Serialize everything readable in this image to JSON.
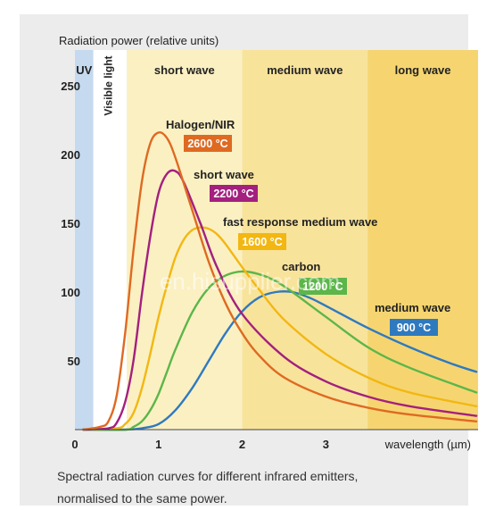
{
  "chart_data": {
    "type": "line",
    "y_title": "Radiation power (relative units)",
    "x_title": "wavelength (µm)",
    "xlim": [
      0,
      4.82
    ],
    "ylim": [
      0,
      276
    ],
    "x_ticks": [
      0,
      1,
      2,
      3
    ],
    "y_ticks": [
      50,
      100,
      150,
      200,
      250
    ],
    "bands": [
      {
        "label": "UV",
        "from": 0,
        "to": 0.22,
        "color": "#c5d9ef"
      },
      {
        "label": "Visible light",
        "from": 0.22,
        "to": 0.62,
        "color": "#ffffff"
      },
      {
        "label": "short wave",
        "from": 0.62,
        "to": 2.0,
        "color": "#fbf0c2"
      },
      {
        "label": "medium wave",
        "from": 2.0,
        "to": 3.5,
        "color": "#f8e39b"
      },
      {
        "label": "long wave",
        "from": 3.5,
        "to": 4.82,
        "color": "#f6d570"
      }
    ],
    "series": [
      {
        "name": "Halogen/NIR",
        "temp": "2600 °C",
        "color": "#de6a22",
        "x": [
          0.1,
          0.3,
          0.4,
          0.5,
          0.6,
          0.7,
          0.8,
          0.9,
          1.0,
          1.1,
          1.2,
          1.4,
          1.6,
          1.8,
          2.0,
          2.2,
          2.5,
          3.0,
          3.5,
          4.0,
          4.8
        ],
        "y": [
          0,
          2,
          6,
          25,
          70,
          130,
          180,
          208,
          216,
          212,
          198,
          160,
          122,
          92,
          70,
          54,
          38,
          24,
          16,
          11,
          6
        ]
      },
      {
        "name": "short wave",
        "temp": "2200 °C",
        "color": "#a3207e",
        "x": [
          0.1,
          0.4,
          0.5,
          0.6,
          0.7,
          0.8,
          0.9,
          1.0,
          1.1,
          1.2,
          1.3,
          1.5,
          1.7,
          2.0,
          2.5,
          3.0,
          3.5,
          4.0,
          4.8
        ],
        "y": [
          0,
          1,
          5,
          20,
          50,
          98,
          140,
          172,
          186,
          188,
          180,
          150,
          118,
          84,
          53,
          35,
          24,
          17,
          10
        ]
      },
      {
        "name": "fast response medium wave",
        "temp": "1600 °C",
        "color": "#f2b712",
        "x": [
          0.1,
          0.5,
          0.6,
          0.7,
          0.8,
          0.9,
          1.0,
          1.1,
          1.2,
          1.3,
          1.4,
          1.5,
          1.6,
          1.7,
          1.8,
          2.0,
          2.2,
          2.5,
          3.0,
          3.5,
          4.0,
          4.8
        ],
        "y": [
          0,
          1,
          4,
          12,
          30,
          55,
          82,
          105,
          125,
          138,
          145,
          147,
          146,
          142,
          135,
          118,
          102,
          80,
          55,
          38,
          27,
          17
        ]
      },
      {
        "name": "carbon",
        "temp": "1200 °C",
        "color": "#5cb64a",
        "x": [
          0.1,
          0.6,
          0.7,
          0.8,
          0.9,
          1.0,
          1.1,
          1.2,
          1.4,
          1.6,
          1.8,
          2.0,
          2.2,
          2.4,
          2.6,
          3.0,
          3.5,
          4.0,
          4.8
        ],
        "y": [
          0,
          0,
          2,
          6,
          14,
          26,
          42,
          58,
          85,
          103,
          112,
          115,
          113,
          108,
          100,
          82,
          60,
          45,
          27
        ]
      },
      {
        "name": "medium wave",
        "temp": "900 °C",
        "color": "#2f7abf",
        "x": [
          0.1,
          0.6,
          0.8,
          1.0,
          1.2,
          1.4,
          1.6,
          1.8,
          2.0,
          2.2,
          2.4,
          2.6,
          2.8,
          3.0,
          3.5,
          4.0,
          4.5,
          4.8
        ],
        "y": [
          0,
          0,
          1,
          4,
          14,
          30,
          50,
          70,
          86,
          96,
          100,
          100,
          96,
          90,
          74,
          60,
          48,
          42
        ]
      }
    ]
  },
  "caption": {
    "line1": "Spectral radiation curves for different infrared emitters,",
    "line2": "normalised to the same power."
  },
  "watermark": "en.hisupplier.com"
}
